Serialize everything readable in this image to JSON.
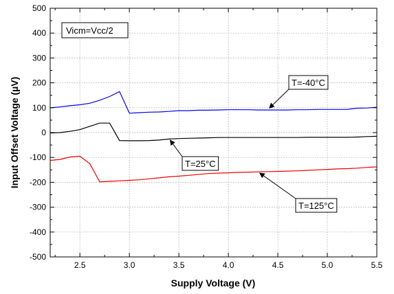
{
  "chart_data": {
    "type": "line",
    "title": "",
    "xlabel": "Supply Voltage (V)",
    "ylabel": "Input Offset Voltage (µV)",
    "xlim": [
      2.2,
      5.5
    ],
    "ylim": [
      -500,
      500
    ],
    "xticks": [
      2.5,
      3.0,
      3.5,
      4.0,
      4.5,
      5.0,
      5.5
    ],
    "xtick_labels": [
      "2.5",
      "3.0",
      "3.5",
      "4.0",
      "4.5",
      "5.0",
      "5.5"
    ],
    "yticks": [
      -500,
      -400,
      -300,
      -200,
      -100,
      0,
      100,
      200,
      300,
      400,
      500
    ],
    "ytick_labels": [
      "-500",
      "-400",
      "-300",
      "-200",
      "-100",
      "0",
      "100",
      "200",
      "300",
      "400",
      "500"
    ],
    "grid": true,
    "legend": "none",
    "condition_label": "Vicm=Vcc/2",
    "series": [
      {
        "name": "T=-40°C",
        "color": "#0000ee",
        "x": [
          2.2,
          2.3,
          2.4,
          2.5,
          2.6,
          2.7,
          2.8,
          2.9,
          3.0,
          3.1,
          3.2,
          3.3,
          3.4,
          3.5,
          3.6,
          3.7,
          3.8,
          3.9,
          4.0,
          4.1,
          4.2,
          4.3,
          4.4,
          4.5,
          4.6,
          4.7,
          4.8,
          4.9,
          5.0,
          5.1,
          5.2,
          5.3,
          5.4,
          5.5
        ],
        "y": [
          100,
          103,
          108,
          112,
          118,
          130,
          145,
          165,
          78,
          80,
          82,
          83,
          85,
          88,
          88,
          90,
          90,
          91,
          92,
          92,
          92,
          91,
          91,
          91,
          91,
          92,
          92,
          93,
          93,
          93,
          93,
          98,
          99,
          102
        ]
      },
      {
        "name": "T=25°C",
        "color": "#000000",
        "x": [
          2.2,
          2.3,
          2.4,
          2.5,
          2.6,
          2.7,
          2.8,
          2.9,
          3.0,
          3.1,
          3.2,
          3.3,
          3.4,
          3.5,
          3.6,
          3.7,
          3.8,
          3.9,
          4.0,
          4.1,
          4.2,
          4.3,
          4.4,
          4.5,
          4.6,
          4.7,
          4.8,
          4.9,
          5.0,
          5.1,
          5.2,
          5.3,
          5.4,
          5.5
        ],
        "y": [
          -2,
          0,
          5,
          12,
          25,
          38,
          38,
          -32,
          -33,
          -33,
          -32,
          -30,
          -26,
          -24,
          -23,
          -22,
          -21,
          -20,
          -20,
          -20,
          -20,
          -20,
          -20,
          -20,
          -20,
          -20,
          -19,
          -19,
          -19,
          -19,
          -19,
          -18,
          -16,
          -15
        ]
      },
      {
        "name": "T=125°C",
        "color": "#ee0000",
        "x": [
          2.2,
          2.3,
          2.4,
          2.5,
          2.6,
          2.7,
          2.8,
          2.9,
          3.0,
          3.1,
          3.2,
          3.3,
          3.4,
          3.5,
          3.6,
          3.7,
          3.8,
          3.9,
          4.0,
          4.1,
          4.2,
          4.3,
          4.4,
          4.5,
          4.6,
          4.7,
          4.8,
          4.9,
          5.0,
          5.1,
          5.2,
          5.3,
          5.4,
          5.5
        ],
        "y": [
          -112,
          -108,
          -98,
          -95,
          -125,
          -198,
          -196,
          -194,
          -192,
          -190,
          -186,
          -182,
          -178,
          -175,
          -172,
          -168,
          -165,
          -163,
          -162,
          -160,
          -159,
          -158,
          -157,
          -156,
          -155,
          -154,
          -152,
          -150,
          -148,
          -146,
          -145,
          -143,
          -140,
          -138
        ]
      }
    ],
    "annotations": [
      {
        "text": "T=-40°C",
        "series": 0,
        "arrow_to": [
          4.4,
          93
        ]
      },
      {
        "text": "T=25°C",
        "series": 1,
        "arrow_to": [
          3.4,
          -24
        ]
      },
      {
        "text": "T=125°C",
        "series": 2,
        "arrow_to": [
          4.3,
          -158
        ]
      }
    ]
  }
}
